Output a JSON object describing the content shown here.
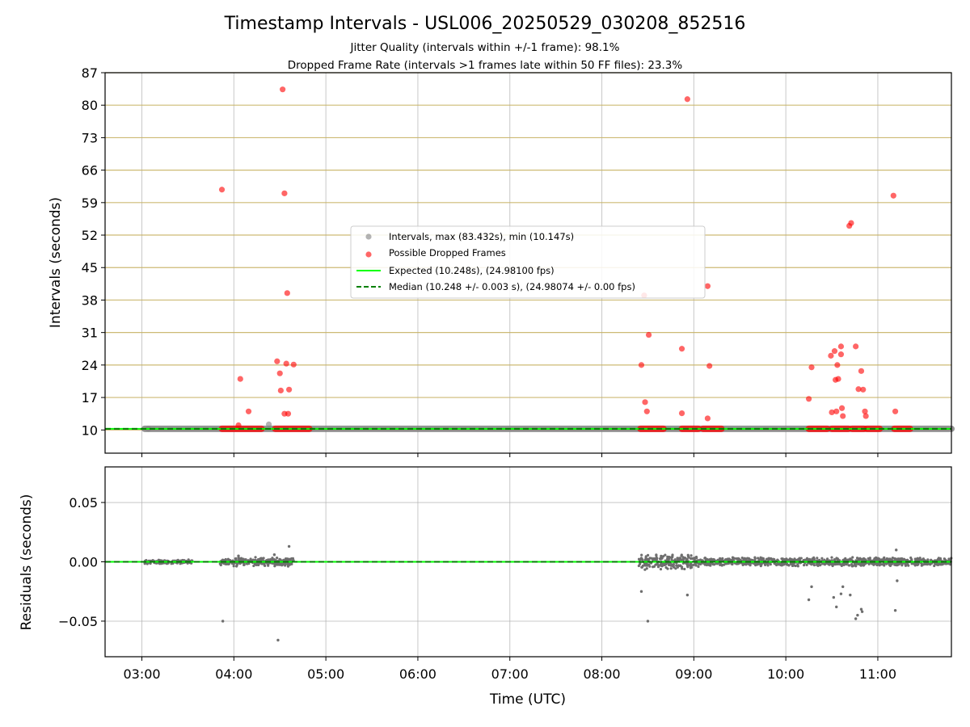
{
  "figure": {
    "title": "Timestamp Intervals - USL006_20250529_030208_852516",
    "subtitle_line1": "Jitter Quality (intervals within +/-1 frame): 98.1%",
    "subtitle_line2": "Dropped Frame Rate (intervals >1 frames late within 50 FF files): 23.3%"
  },
  "colors": {
    "grid": "#b0b0b0",
    "hgrid_top": "#c8b365",
    "intervals": "#808080",
    "dropped": "#ff0000",
    "expected": "#00ff00",
    "median": "#008000",
    "residual_points": "#6e6e6e"
  },
  "chart_data": [
    {
      "type": "scatter",
      "panel": "top",
      "xlabel": "",
      "ylabel": "Intervals (seconds)",
      "x_unit": "hours UTC",
      "xlim": [
        2.6,
        11.8
      ],
      "ylim": [
        5.0,
        87.0
      ],
      "yticks": [
        10,
        17,
        24,
        31,
        38,
        45,
        52,
        59,
        66,
        73,
        80,
        87
      ],
      "grid": true,
      "legend_position": "center",
      "legend": [
        "Intervals, max (83.432s), min (10.147s)",
        "Possible Dropped Frames",
        "Expected (10.248s), (24.98100 fps)",
        "Median (10.248 +/- 0.003 s), (24.98074 +/- 0.00 fps)"
      ],
      "series": [
        {
          "name": "Intervals, max (83.432s), min (10.147s)",
          "style": "scatter",
          "baseline_segments": [
            [
              3.03,
              11.8
            ]
          ],
          "baseline_value": 10.25,
          "points": [
            [
              4.38,
              11.2
            ],
            [
              3.07,
              10.25
            ]
          ]
        },
        {
          "name": "Possible Dropped Frames",
          "style": "scatter",
          "baseline_value": 10.25,
          "clusters": [
            [
              3.87,
              4.3
            ],
            [
              4.45,
              4.82
            ],
            [
              8.42,
              8.67
            ],
            [
              8.87,
              9.05
            ],
            [
              9.1,
              9.3
            ],
            [
              10.25,
              10.45
            ],
            [
              10.5,
              10.68
            ],
            [
              10.72,
              10.85
            ],
            [
              10.88,
              11.02
            ],
            [
              11.18,
              11.35
            ]
          ],
          "points": [
            [
              3.87,
              61.8
            ],
            [
              4.07,
              21.0
            ],
            [
              4.05,
              11.0
            ],
            [
              4.16,
              14.0
            ],
            [
              4.47,
              24.8
            ],
            [
              4.5,
              22.2
            ],
            [
              4.51,
              18.5
            ],
            [
              4.53,
              83.4
            ],
            [
              4.55,
              61.0
            ],
            [
              4.55,
              13.5
            ],
            [
              4.57,
              24.3
            ],
            [
              4.58,
              39.5
            ],
            [
              4.59,
              13.5
            ],
            [
              4.6,
              18.7
            ],
            [
              4.65,
              24.1
            ],
            [
              8.43,
              24.0
            ],
            [
              8.46,
              39.0
            ],
            [
              8.47,
              16.0
            ],
            [
              8.49,
              14.0
            ],
            [
              8.51,
              30.5
            ],
            [
              8.87,
              27.5
            ],
            [
              8.87,
              13.6
            ],
            [
              8.93,
              81.3
            ],
            [
              9.15,
              41.0
            ],
            [
              9.15,
              12.5
            ],
            [
              9.17,
              23.8
            ],
            [
              10.25,
              16.7
            ],
            [
              10.28,
              23.5
            ],
            [
              10.49,
              26.0
            ],
            [
              10.5,
              13.8
            ],
            [
              10.53,
              27.0
            ],
            [
              10.54,
              20.8
            ],
            [
              10.55,
              14.0
            ],
            [
              10.56,
              24.0
            ],
            [
              10.57,
              21.0
            ],
            [
              10.6,
              26.3
            ],
            [
              10.6,
              28.0
            ],
            [
              10.61,
              14.7
            ],
            [
              10.62,
              13.0
            ],
            [
              10.69,
              54.0
            ],
            [
              10.71,
              54.6
            ],
            [
              10.76,
              28.0
            ],
            [
              10.79,
              18.8
            ],
            [
              10.82,
              22.7
            ],
            [
              10.84,
              18.7
            ],
            [
              10.86,
              14.0
            ],
            [
              10.87,
              13.0
            ],
            [
              11.17,
              60.5
            ],
            [
              11.19,
              14.0
            ]
          ]
        },
        {
          "name": "Expected (10.248s), (24.98100 fps)",
          "style": "line",
          "value": 10.248
        },
        {
          "name": "Median (10.248 +/- 0.003 s), (24.98074 +/- 0.00 fps)",
          "style": "dashed-line",
          "value": 10.248
        }
      ]
    },
    {
      "type": "scatter",
      "panel": "bottom",
      "xlabel": "Time (UTC)",
      "ylabel": "Residuals (seconds)",
      "x_unit": "hours UTC",
      "xlim": [
        2.6,
        11.8
      ],
      "ylim": [
        -0.08,
        0.08
      ],
      "yticks": [
        0.05,
        0.0,
        -0.05
      ],
      "ytick_labels": [
        "0.05",
        "0.00",
        "−0.05"
      ],
      "xticks": [
        3,
        4,
        5,
        6,
        7,
        8,
        9,
        10,
        11
      ],
      "xtick_labels": [
        "03:00",
        "04:00",
        "05:00",
        "06:00",
        "07:00",
        "08:00",
        "09:00",
        "10:00",
        "11:00"
      ],
      "grid": true,
      "series": [
        {
          "name": "",
          "style": "scatter",
          "noise_bands": [
            [
              3.03,
              3.55,
              0.002
            ],
            [
              3.85,
              4.65,
              0.004
            ],
            [
              8.4,
              9.05,
              0.007
            ],
            [
              9.05,
              11.8,
              0.004
            ]
          ],
          "outliers": [
            [
              3.88,
              -0.05
            ],
            [
              4.48,
              -0.066
            ],
            [
              4.6,
              0.013
            ],
            [
              4.44,
              0.006
            ],
            [
              4.05,
              0.005
            ],
            [
              8.43,
              -0.025
            ],
            [
              8.5,
              -0.05
            ],
            [
              8.93,
              -0.028
            ],
            [
              10.25,
              -0.032
            ],
            [
              10.28,
              -0.021
            ],
            [
              10.52,
              -0.03
            ],
            [
              10.55,
              -0.038
            ],
            [
              10.6,
              -0.027
            ],
            [
              10.62,
              -0.021
            ],
            [
              10.7,
              -0.028
            ],
            [
              10.76,
              -0.048
            ],
            [
              10.78,
              -0.045
            ],
            [
              10.82,
              -0.04
            ],
            [
              10.83,
              -0.042
            ],
            [
              11.19,
              -0.041
            ],
            [
              11.21,
              -0.016
            ],
            [
              11.2,
              0.01
            ]
          ]
        },
        {
          "name": "",
          "style": "line",
          "value": 0.0
        }
      ]
    }
  ]
}
